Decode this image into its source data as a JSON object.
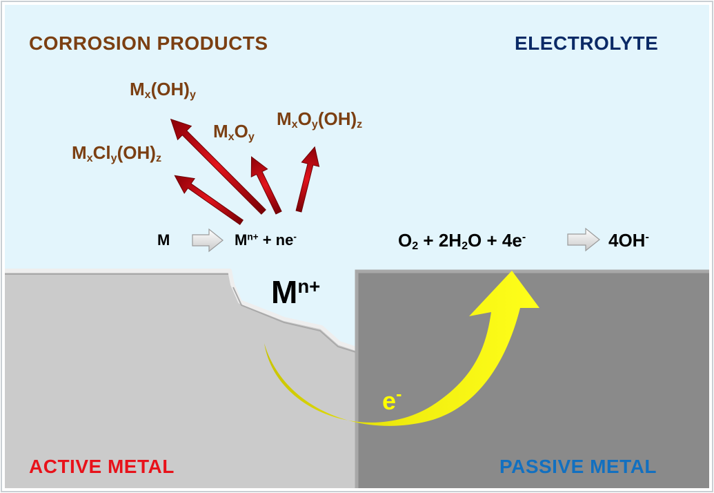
{
  "labels": {
    "corrosion_products": "CORROSION PRODUCTS",
    "electrolyte": "ELECTROLYTE",
    "active_metal": "ACTIVE METAL",
    "passive_metal": "PASSIVE METAL"
  },
  "products": {
    "mx_oh_y": {
      "base1": "M",
      "s1": "x",
      "base2": "(OH)",
      "s2": "y"
    },
    "mx_oy": {
      "base1": "M",
      "s1": "x",
      "base2": "O",
      "s2": "y"
    },
    "mx_oy_oh_z": {
      "base1": "M",
      "s1": "x",
      "base2": "O",
      "s2": "y",
      "base3": "(OH)",
      "s3": "z"
    },
    "mx_cly_oh_z": {
      "base1": "M",
      "s1": "x",
      "base2": "Cl",
      "s2": "y",
      "base3": "(OH)",
      "s3": "z"
    }
  },
  "anodic": {
    "reactant": "M",
    "product_base": "M",
    "product_sup": "n+",
    "product_rest": " + ne",
    "electron_sup": "-"
  },
  "cathodic": {
    "o": "O",
    "o_sub": "2",
    "mid": " + 2H",
    "h_sub": "2",
    "rest": "O + 4e",
    "e_sup": "-",
    "product": "4OH",
    "product_sup": "-"
  },
  "ion": {
    "base": "M",
    "sup": "n+"
  },
  "electron": {
    "base": "e",
    "sup": "-"
  },
  "colors": {
    "electrolyte": "#e3f5fc",
    "active_metal": "#cbcbcb",
    "passive_metal": "#8a8a8a",
    "corrosion_text": "#7b3f12",
    "electrolyte_text": "#0b2a66",
    "active_text": "#e8121a",
    "passive_text": "#1270c0",
    "arrow_red": "#c8070f",
    "electron_arrow": "#ffff00"
  }
}
